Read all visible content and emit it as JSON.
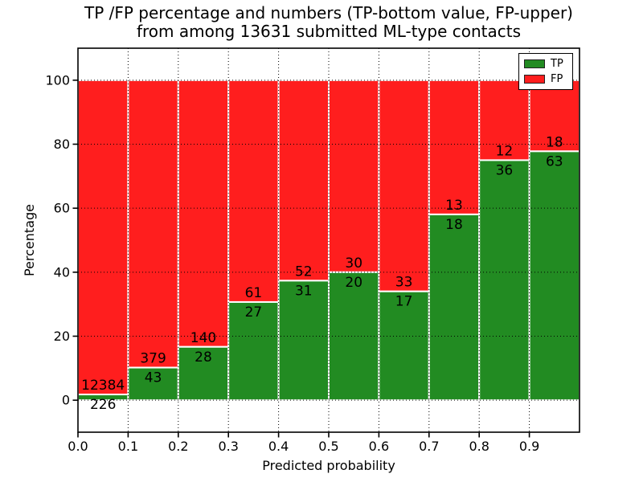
{
  "title": {
    "line1": "TP /FP percentage and numbers (TP-bottom value, FP-upper)",
    "line2": "from among 13631 submitted ML-type contacts"
  },
  "axes": {
    "xlabel": "Predicted probability",
    "ylabel": "Percentage"
  },
  "legend": {
    "position": "upper right",
    "items": [
      {
        "label": "TP",
        "color": "#228b22"
      },
      {
        "label": "FP",
        "color": "#ff1e1e"
      }
    ]
  },
  "chart_data": {
    "type": "bar",
    "stacked": true,
    "title": "TP /FP percentage and numbers (TP-bottom value, FP-upper) from among 13631 submitted ML-type contacts",
    "xlabel": "Predicted probability",
    "ylabel": "Percentage",
    "total_contacts": 13631,
    "xlim": [
      0.0,
      1.0
    ],
    "ylim": [
      -10,
      110
    ],
    "grid": "dotted",
    "x_ticks": [
      0.0,
      0.1,
      0.2,
      0.3,
      0.4,
      0.5,
      0.6,
      0.7,
      0.8,
      0.9
    ],
    "x_tick_labels": [
      "0.0",
      "0.1",
      "0.2",
      "0.3",
      "0.4",
      "0.5",
      "0.6",
      "0.7",
      "0.8",
      "0.9"
    ],
    "y_ticks": [
      0,
      20,
      40,
      60,
      80,
      100
    ],
    "bin_edges": [
      0.0,
      0.1,
      0.2,
      0.3,
      0.4,
      0.5,
      0.6,
      0.7,
      0.8,
      0.9,
      1.0
    ],
    "series": [
      {
        "name": "TP",
        "color": "#228b22",
        "counts": [
          226,
          43,
          28,
          27,
          31,
          20,
          17,
          18,
          36,
          63
        ],
        "percent": [
          1.79,
          10.19,
          16.67,
          30.68,
          37.35,
          40.0,
          34.0,
          58.06,
          75.0,
          77.78
        ]
      },
      {
        "name": "FP",
        "color": "#ff1e1e",
        "counts": [
          12384,
          379,
          140,
          61,
          52,
          30,
          33,
          13,
          12,
          18
        ],
        "percent": [
          98.21,
          89.81,
          83.33,
          69.32,
          62.65,
          60.0,
          66.0,
          41.94,
          25.0,
          22.22
        ]
      }
    ]
  }
}
